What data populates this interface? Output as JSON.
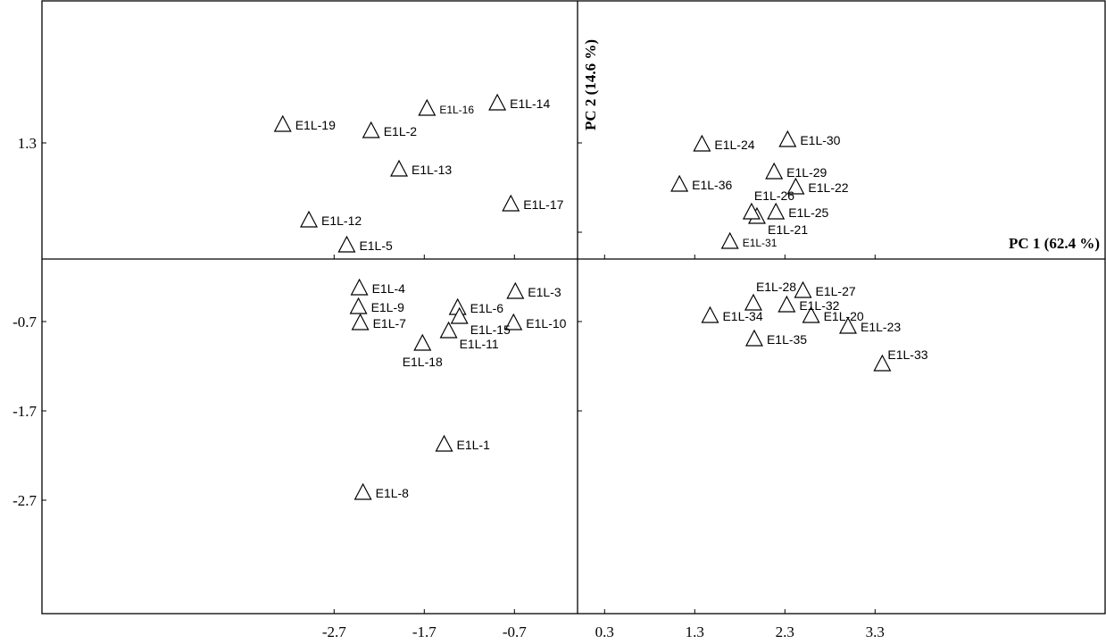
{
  "chart_data": {
    "type": "scatter",
    "title": "",
    "xlabel": "PC 1 (62.4 %)",
    "ylabel": "PC 2 (14.6 %)",
    "xlim": [
      -3.3,
      3.4
    ],
    "ylim": [
      -2.85,
      1.78
    ],
    "xticks": [
      -2.7,
      -1.7,
      -0.7,
      0.3,
      1.3,
      2.3,
      3.3
    ],
    "xtick_labels": [
      "-2.7",
      "-1.7",
      "-0.7",
      "0.3",
      "1.3",
      "2.3",
      "3.3"
    ],
    "yticks": [
      -2.7,
      -1.7,
      -0.7,
      1.3
    ],
    "ytick_labels": [
      "-2.7",
      "-1.7",
      "-0.7",
      "1.3"
    ],
    "grid": false,
    "marker": "open-triangle",
    "points": [
      {
        "label": "E1L-1",
        "x": -1.48,
        "y": -2.08,
        "pos": "right"
      },
      {
        "label": "E1L-2",
        "x": -2.29,
        "y": 1.43,
        "pos": "right"
      },
      {
        "label": "E1L-3",
        "x": -0.69,
        "y": -0.37,
        "pos": "right"
      },
      {
        "label": "E1L-4",
        "x": -2.42,
        "y": -0.33,
        "pos": "right"
      },
      {
        "label": "E1L-5",
        "x": -2.56,
        "y": 0.15,
        "pos": "right"
      },
      {
        "label": "E1L-6",
        "x": -1.33,
        "y": -0.55,
        "pos": "right"
      },
      {
        "label": "E1L-7",
        "x": -2.41,
        "y": -0.72,
        "pos": "right"
      },
      {
        "label": "E1L-8",
        "x": -2.38,
        "y": -2.62,
        "pos": "right"
      },
      {
        "label": "E1L-9",
        "x": -2.43,
        "y": -0.54,
        "pos": "right"
      },
      {
        "label": "E1L-10",
        "x": -0.71,
        "y": -0.72,
        "pos": "right"
      },
      {
        "label": "E1L-11",
        "x": -1.43,
        "y": -0.81,
        "pos": "below-right"
      },
      {
        "label": "E1L-12",
        "x": -2.98,
        "y": 0.43,
        "pos": "right"
      },
      {
        "label": "E1L-13",
        "x": -1.98,
        "y": 1.0,
        "pos": "right"
      },
      {
        "label": "E1L-14",
        "x": -0.89,
        "y": 1.74,
        "pos": "right"
      },
      {
        "label": "E1L-15",
        "x": -1.31,
        "y": -0.65,
        "pos": "below-right"
      },
      {
        "label": "E1L-16",
        "x": -1.67,
        "y": 1.68,
        "pos": "right",
        "small": true
      },
      {
        "label": "E1L-17",
        "x": -0.74,
        "y": 0.61,
        "pos": "right"
      },
      {
        "label": "E1L-18",
        "x": -1.72,
        "y": -0.95,
        "pos": "below"
      },
      {
        "label": "E1L-19",
        "x": -3.27,
        "y": 1.5,
        "pos": "right"
      },
      {
        "label": "E1L-20",
        "x": 2.59,
        "y": -0.64,
        "pos": "right"
      },
      {
        "label": "E1L-21",
        "x": 1.99,
        "y": 0.47,
        "pos": "below-right"
      },
      {
        "label": "E1L-22",
        "x": 2.42,
        "y": 0.8,
        "pos": "right"
      },
      {
        "label": "E1L-23",
        "x": 3.0,
        "y": -0.76,
        "pos": "right"
      },
      {
        "label": "E1L-24",
        "x": 1.38,
        "y": 1.28,
        "pos": "right"
      },
      {
        "label": "E1L-25",
        "x": 2.2,
        "y": 0.52,
        "pos": "right"
      },
      {
        "label": "E1L-26",
        "x": 1.93,
        "y": 0.52,
        "pos": "above"
      },
      {
        "label": "E1L-27",
        "x": 2.5,
        "y": -0.36,
        "pos": "right"
      },
      {
        "label": "E1L-28",
        "x": 1.95,
        "y": -0.5,
        "pos": "above"
      },
      {
        "label": "E1L-29",
        "x": 2.18,
        "y": 0.97,
        "pos": "right"
      },
      {
        "label": "E1L-30",
        "x": 2.33,
        "y": 1.33,
        "pos": "right"
      },
      {
        "label": "E1L-31",
        "x": 1.69,
        "y": 0.19,
        "pos": "right",
        "small": true
      },
      {
        "label": "E1L-32",
        "x": 2.32,
        "y": -0.52,
        "pos": "right"
      },
      {
        "label": "E1L-33",
        "x": 3.38,
        "y": -1.18,
        "pos": "above-right"
      },
      {
        "label": "E1L-34",
        "x": 1.47,
        "y": -0.64,
        "pos": "right"
      },
      {
        "label": "E1L-35",
        "x": 1.96,
        "y": -0.9,
        "pos": "right"
      },
      {
        "label": "E1L-36",
        "x": 1.13,
        "y": 0.83,
        "pos": "right"
      }
    ]
  }
}
